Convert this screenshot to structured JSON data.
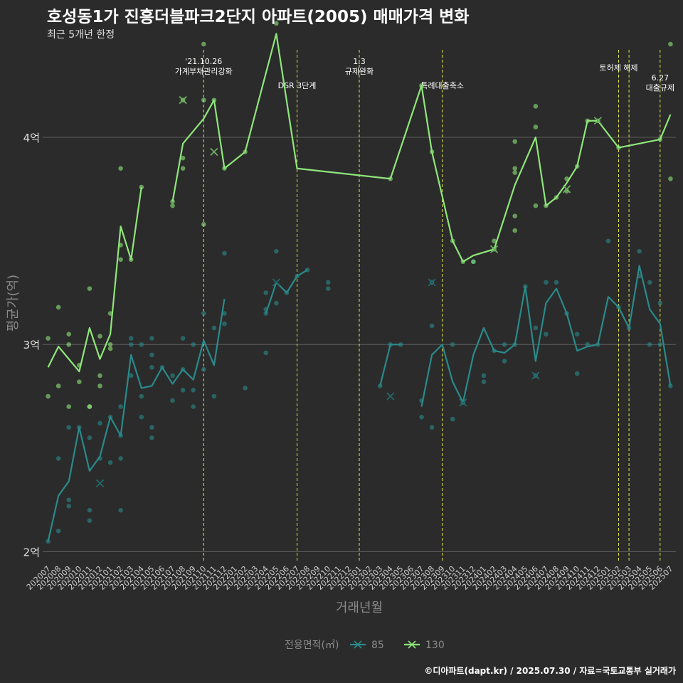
{
  "title": "호성동1가 진흥더블파크2단지 아파트(2005) 매매가격 변화",
  "subtitle": "최근 5개년 한정",
  "caption": "©디아파트(dapt.kr) / 2025.07.30 / 자료=국토교통부 실거래가",
  "colors": {
    "background": "#2b2b2b",
    "grid": "#5e5e5e",
    "s85": "#2a8a8a",
    "s130": "#8ee67a",
    "event": "#e2e84a"
  },
  "chart_data": {
    "type": "line",
    "xlabel": "거래년월",
    "ylabel": "평균가(억)",
    "y_unit": "만원",
    "ylim": [
      19500,
      44500
    ],
    "yticks": [
      {
        "value": 20000,
        "label": "2억"
      },
      {
        "value": 30000,
        "label": "3억"
      },
      {
        "value": 40000,
        "label": "4억"
      }
    ],
    "categories": [
      "202007",
      "202008",
      "202009",
      "202010",
      "202011",
      "202012",
      "202101",
      "202102",
      "202103",
      "202104",
      "202105",
      "202106",
      "202107",
      "202108",
      "202109",
      "202110",
      "202111",
      "202112",
      "202201",
      "202202",
      "202203",
      "202204",
      "202205",
      "202206",
      "202207",
      "202208",
      "202209",
      "202210",
      "202211",
      "202212",
      "202301",
      "202302",
      "202303",
      "202304",
      "202305",
      "202306",
      "202307",
      "202308",
      "202309",
      "202310",
      "202311",
      "202312",
      "202401",
      "202402",
      "202403",
      "202404",
      "202405",
      "202406",
      "202407",
      "202408",
      "202409",
      "202410",
      "202411",
      "202412",
      "202501",
      "202502",
      "202503",
      "202504",
      "202505",
      "202506",
      "202507"
    ],
    "legend": {
      "title": "전용면적(㎡)",
      "position": "bottom"
    },
    "events": [
      {
        "x": "202110",
        "label": "'21.10.26\n가계부채관리강화"
      },
      {
        "x": "202207",
        "label": "DSR 3단계"
      },
      {
        "x": "202301",
        "label": "1.3\n규제완화"
      },
      {
        "x": "202309",
        "label": "특례대출축소"
      },
      {
        "x": "202502",
        "label": "토허제 해제"
      },
      {
        "x": "202503",
        "label": ""
      },
      {
        "x": "202506",
        "label": "6.27\n대출규제"
      }
    ],
    "series": [
      {
        "name": "85",
        "color": "#2a8a8a",
        "line": [
          [
            "202007",
            20500
          ],
          [
            "202008",
            22700
          ],
          [
            "202009",
            23400
          ],
          [
            "202010",
            26000
          ],
          [
            "202011",
            23900
          ],
          [
            "202012",
            24600
          ],
          [
            "202101",
            26500
          ],
          [
            "202102",
            25600
          ],
          [
            "202103",
            29500
          ],
          [
            "202104",
            27900
          ],
          [
            "202105",
            28000
          ],
          [
            "202106",
            28900
          ],
          [
            "202107",
            28100
          ],
          [
            "202108",
            28800
          ],
          [
            "202109",
            28300
          ],
          [
            "202110",
            30200
          ],
          [
            "202111",
            29000
          ],
          [
            "202112",
            32200
          ],
          null,
          [
            "202204",
            31500
          ],
          [
            "202205",
            33000
          ],
          [
            "202206",
            32500
          ],
          [
            "202207",
            33300
          ],
          [
            "202208",
            33600
          ],
          null,
          [
            "202303",
            28000
          ],
          [
            "202304",
            30000
          ],
          [
            "202305",
            30000
          ],
          null,
          [
            "202307",
            27000
          ],
          [
            "202308",
            29500
          ],
          [
            "202309",
            30000
          ],
          [
            "202310",
            28200
          ],
          [
            "202311",
            27200
          ],
          [
            "202312",
            29500
          ],
          [
            "202401",
            30800
          ],
          [
            "202402",
            29700
          ],
          [
            "202403",
            29600
          ],
          [
            "202404",
            30000
          ],
          [
            "202405",
            32800
          ],
          [
            "202406",
            29200
          ],
          [
            "202407",
            32000
          ],
          [
            "202408",
            32700
          ],
          [
            "202409",
            31500
          ],
          [
            "202410",
            29700
          ],
          [
            "202411",
            29900
          ],
          [
            "202412",
            30000
          ],
          [
            "202501",
            32300
          ],
          [
            "202502",
            31800
          ],
          [
            "202503",
            30800
          ],
          [
            "202504",
            33800
          ],
          [
            "202505",
            31700
          ],
          [
            "202506",
            31000
          ],
          [
            "202507",
            28000
          ]
        ],
        "points": [
          [
            "202007",
            20500
          ],
          [
            "202008",
            24500
          ],
          [
            "202008",
            21000
          ],
          [
            "202009",
            22200
          ],
          [
            "202009",
            22500
          ],
          [
            "202009",
            26000
          ],
          [
            "202010",
            26000
          ],
          [
            "202011",
            22000
          ],
          [
            "202011",
            21500
          ],
          [
            "202011",
            25500
          ],
          [
            "202012",
            24500
          ],
          [
            "202012",
            26200
          ],
          [
            "202101",
            24300
          ],
          [
            "202101",
            26500
          ],
          [
            "202102",
            25600
          ],
          [
            "202102",
            27000
          ],
          [
            "202102",
            24500
          ],
          [
            "202102",
            22000
          ],
          [
            "202103",
            30000
          ],
          [
            "202103",
            28500
          ],
          [
            "202103",
            30300
          ],
          [
            "202104",
            30000
          ],
          [
            "202104",
            26500
          ],
          [
            "202104",
            27500
          ],
          [
            "202105",
            30300
          ],
          [
            "202105",
            29500
          ],
          [
            "202105",
            28900
          ],
          [
            "202105",
            25500
          ],
          [
            "202105",
            26000
          ],
          [
            "202106",
            28900
          ],
          [
            "202107",
            28500
          ],
          [
            "202107",
            27300
          ],
          [
            "202108",
            28800
          ],
          [
            "202108",
            30300
          ],
          [
            "202108",
            27800
          ],
          [
            "202109",
            27000
          ],
          [
            "202109",
            27800
          ],
          [
            "202109",
            30000
          ],
          [
            "202110",
            31500
          ],
          [
            "202110",
            28800
          ],
          [
            "202111",
            27500
          ],
          [
            "202111",
            30800
          ],
          [
            "202112",
            31000
          ],
          [
            "202112",
            31500
          ],
          [
            "202112",
            34400
          ],
          [
            "202202",
            27900
          ],
          [
            "202204",
            31500
          ],
          [
            "202204",
            32500
          ],
          [
            "202204",
            29600
          ],
          [
            "202204",
            31700
          ],
          [
            "202205",
            34500
          ],
          [
            "202205",
            32000
          ],
          [
            "202206",
            32500
          ],
          [
            "202207",
            33300
          ],
          [
            "202208",
            33600
          ],
          [
            "202210",
            32700
          ],
          [
            "202210",
            33000
          ],
          [
            "202303",
            28000
          ],
          [
            "202304",
            30000
          ],
          [
            "202305",
            30000
          ],
          [
            "202307",
            26500
          ],
          [
            "202307",
            27300
          ],
          [
            "202308",
            30900
          ],
          [
            "202308",
            26000
          ],
          [
            "202308",
            33000
          ],
          [
            "202310",
            26400
          ],
          [
            "202310",
            30000
          ],
          [
            "202311",
            27200
          ],
          [
            "202312",
            34000
          ],
          [
            "202401",
            28500
          ],
          [
            "202401",
            28200
          ],
          [
            "202402",
            29700
          ],
          [
            "202403",
            29200
          ],
          [
            "202403",
            30000
          ],
          [
            "202404",
            30000
          ],
          [
            "202405",
            32800
          ],
          [
            "202406",
            30800
          ],
          [
            "202406",
            28500
          ],
          [
            "202407",
            33000
          ],
          [
            "202407",
            30500
          ],
          [
            "202408",
            33000
          ],
          [
            "202409",
            31500
          ],
          [
            "202410",
            28600
          ],
          [
            "202410",
            30500
          ],
          [
            "202411",
            30000
          ],
          [
            "202412",
            30000
          ],
          [
            "202501",
            35000
          ],
          [
            "202502",
            31800
          ],
          [
            "202503",
            30800
          ],
          [
            "202504",
            34500
          ],
          [
            "202504",
            33300
          ],
          [
            "202505",
            33000
          ],
          [
            "202505",
            30000
          ],
          [
            "202506",
            32000
          ],
          [
            "202506",
            30000
          ],
          [
            "202507",
            28000
          ]
        ],
        "cancelled": [
          [
            "202012",
            23300
          ],
          [
            "202205",
            33000
          ],
          [
            "202304",
            27500
          ],
          [
            "202308",
            33000
          ],
          [
            "202311",
            27200
          ],
          [
            "202406",
            28500
          ]
        ]
      },
      {
        "name": "130",
        "color": "#8ee67a",
        "line": [
          [
            "202007",
            28900
          ],
          [
            "202008",
            29900
          ],
          [
            "202009",
            29300
          ],
          [
            "202010",
            28700
          ],
          [
            "202011",
            30800
          ],
          [
            "202012",
            29300
          ],
          [
            "202101",
            30500
          ],
          [
            "202102",
            35700
          ],
          [
            "202103",
            34100
          ],
          [
            "202104",
            37600
          ],
          null,
          [
            "202107",
            36900
          ],
          [
            "202108",
            39700
          ],
          [
            "202110",
            40900
          ],
          [
            "202111",
            41800
          ],
          [
            "202112",
            38500
          ],
          [
            "202202",
            39300
          ],
          [
            "202205",
            45000
          ],
          [
            "202207",
            38500
          ],
          [
            "202304",
            38000
          ],
          [
            "202307",
            42500
          ],
          [
            "202308",
            39300
          ],
          [
            "202310",
            35000
          ],
          [
            "202311",
            34000
          ],
          [
            "202312",
            34300
          ],
          [
            "202402",
            34600
          ],
          [
            "202404",
            37700
          ],
          [
            "202406",
            40000
          ],
          [
            "202407",
            36700
          ],
          [
            "202408",
            37100
          ],
          [
            "202409",
            37800
          ],
          [
            "202410",
            38600
          ],
          [
            "202411",
            40800
          ],
          [
            "202412",
            40800
          ],
          [
            "202502",
            39500
          ],
          [
            "202506",
            39900
          ],
          [
            "202507",
            41100
          ]
        ],
        "points": [
          [
            "202007",
            30300
          ],
          [
            "202007",
            27500
          ],
          [
            "202008",
            31800
          ],
          [
            "202008",
            28000
          ],
          [
            "202009",
            30500
          ],
          [
            "202009",
            30000
          ],
          [
            "202009",
            27000
          ],
          [
            "202010",
            29000
          ],
          [
            "202010",
            28200
          ],
          [
            "202011",
            32700
          ],
          [
            "202011",
            27000
          ],
          [
            "202011",
            27000
          ],
          [
            "202012",
            30400
          ],
          [
            "202012",
            28000
          ],
          [
            "202012",
            28500
          ],
          [
            "202101",
            31500
          ],
          [
            "202101",
            30000
          ],
          [
            "202101",
            29800
          ],
          [
            "202102",
            38500
          ],
          [
            "202102",
            34800
          ],
          [
            "202102",
            34100
          ],
          [
            "202103",
            34100
          ],
          [
            "202104",
            37600
          ],
          [
            "202107",
            36900
          ],
          [
            "202107",
            36700
          ],
          [
            "202108",
            41800
          ],
          [
            "202108",
            39000
          ],
          [
            "202108",
            38500
          ],
          [
            "202110",
            41800
          ],
          [
            "202110",
            35800
          ],
          [
            "202110",
            44500
          ],
          [
            "202111",
            41800
          ],
          [
            "202112",
            38500
          ],
          [
            "202202",
            39300
          ],
          [
            "202205",
            45500
          ],
          [
            "202304",
            38000
          ],
          [
            "202307",
            42500
          ],
          [
            "202308",
            39300
          ],
          [
            "202310",
            35000
          ],
          [
            "202311",
            34000
          ],
          [
            "202312",
            34000
          ],
          [
            "202402",
            35000
          ],
          [
            "202402",
            34600
          ],
          [
            "202404",
            39800
          ],
          [
            "202404",
            38500
          ],
          [
            "202404",
            38300
          ],
          [
            "202404",
            36200
          ],
          [
            "202404",
            35500
          ],
          [
            "202406",
            41500
          ],
          [
            "202406",
            40500
          ],
          [
            "202406",
            36700
          ],
          [
            "202407",
            36700
          ],
          [
            "202408",
            37100
          ],
          [
            "202409",
            38000
          ],
          [
            "202409",
            37400
          ],
          [
            "202410",
            38600
          ],
          [
            "202411",
            40800
          ],
          [
            "202412",
            40800
          ],
          [
            "202502",
            39500
          ],
          [
            "202506",
            39900
          ],
          [
            "202507",
            44500
          ],
          [
            "202507",
            38000
          ]
        ],
        "cancelled": [
          [
            "202108",
            41800
          ],
          [
            "202111",
            39300
          ],
          [
            "202402",
            34600
          ],
          [
            "202409",
            37500
          ],
          [
            "202412",
            40800
          ]
        ]
      }
    ]
  }
}
